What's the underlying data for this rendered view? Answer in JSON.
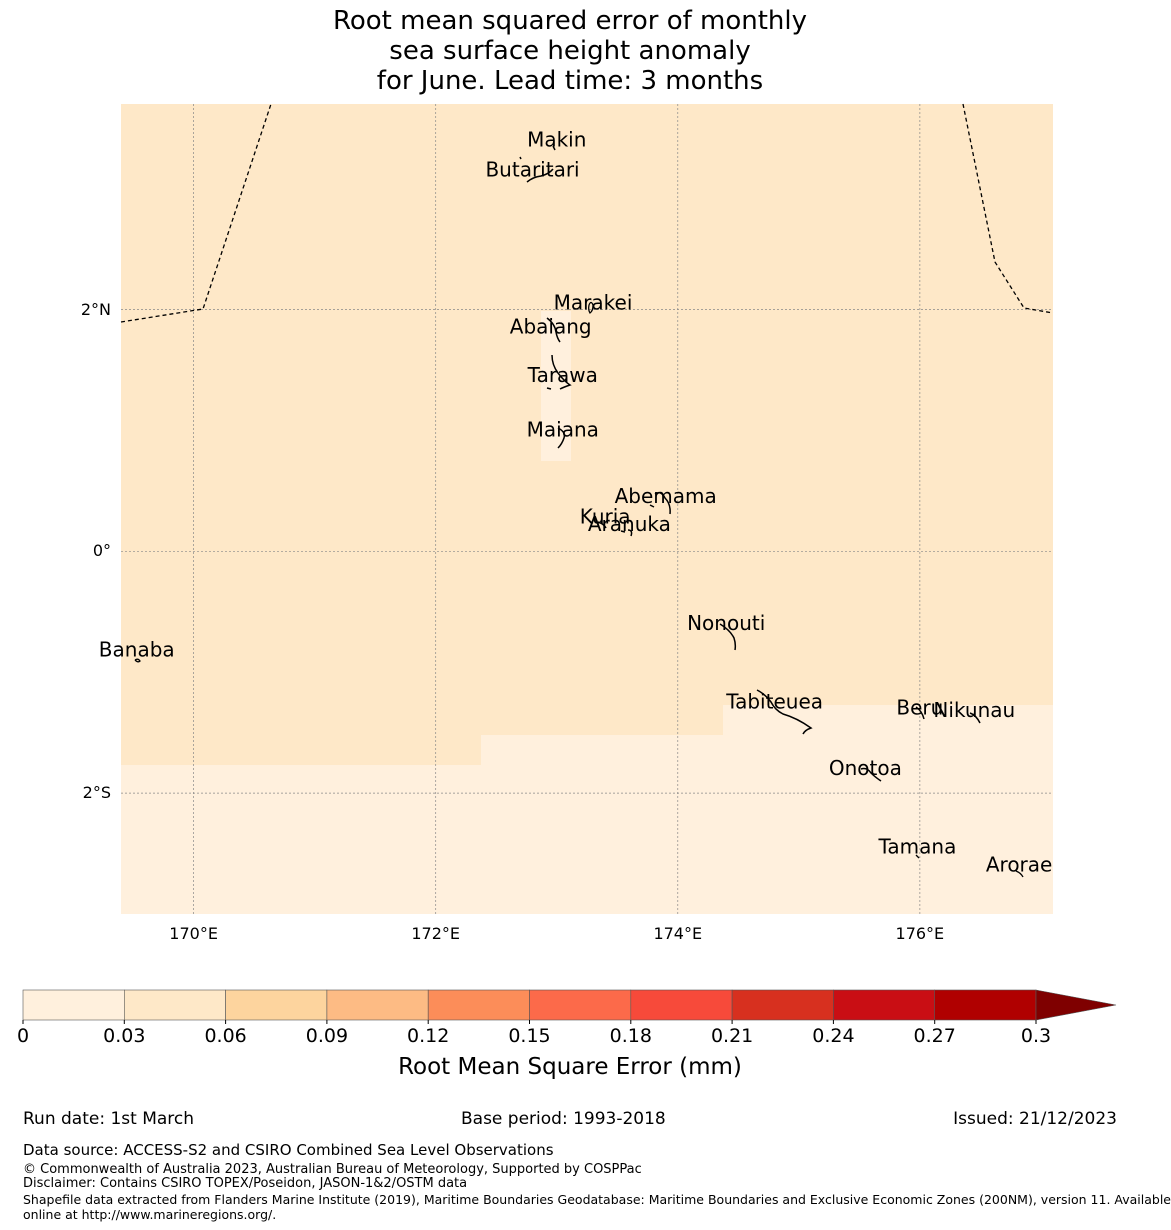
{
  "title": {
    "line1": "Root mean squared error of monthly",
    "line2": "sea surface height anomaly",
    "line3": "for June. Lead time: 3 months"
  },
  "map": {
    "lon_range": [
      169.4,
      177.1
    ],
    "lat_range": [
      -3.0,
      3.7
    ],
    "lon_ticks": [
      {
        "value": 170,
        "label": "170°E"
      },
      {
        "value": 172,
        "label": "172°E"
      },
      {
        "value": 174,
        "label": "174°E"
      },
      {
        "value": 176,
        "label": "176°E"
      }
    ],
    "lat_ticks": [
      {
        "value": 2,
        "label": "2°N"
      },
      {
        "value": 0,
        "label": "0°"
      },
      {
        "value": -2,
        "label": "2°S"
      }
    ],
    "rmse_regions": [
      {
        "bin": "0.03-0.06",
        "color": "#fee8c8"
      },
      {
        "bin": "0-0.03",
        "color": "#fff0dd"
      }
    ],
    "islands": [
      {
        "name": "Makin",
        "lon": 173.0,
        "lat": 3.35
      },
      {
        "name": "Butaritari",
        "lon": 172.8,
        "lat": 3.1
      },
      {
        "name": "Marakei",
        "lon": 173.3,
        "lat": 2.0
      },
      {
        "name": "Abaiang",
        "lon": 172.95,
        "lat": 1.8
      },
      {
        "name": "Tarawa",
        "lon": 173.05,
        "lat": 1.4
      },
      {
        "name": "Maiana",
        "lon": 173.05,
        "lat": 0.95
      },
      {
        "name": "Abemama",
        "lon": 173.9,
        "lat": 0.4
      },
      {
        "name": "Kuria",
        "lon": 173.4,
        "lat": 0.23
      },
      {
        "name": "Aranuka",
        "lon": 173.6,
        "lat": 0.17
      },
      {
        "name": "Nonouti",
        "lon": 174.4,
        "lat": -0.65
      },
      {
        "name": "Banaba",
        "lon": 169.53,
        "lat": -0.87
      },
      {
        "name": "Tabiteuea",
        "lon": 174.8,
        "lat": -1.3
      },
      {
        "name": "Beru",
        "lon": 176.0,
        "lat": -1.35
      },
      {
        "name": "Nikunau",
        "lon": 176.45,
        "lat": -1.37
      },
      {
        "name": "Onotoa",
        "lon": 175.55,
        "lat": -1.85
      },
      {
        "name": "Tamana",
        "lon": 175.98,
        "lat": -2.5
      },
      {
        "name": "Arorae",
        "lon": 176.82,
        "lat": -2.65
      }
    ]
  },
  "colorbar": {
    "title": "Root Mean Square Error (mm)",
    "ticks": [
      "0",
      "0.03",
      "0.06",
      "0.09",
      "0.12",
      "0.15",
      "0.18",
      "0.21",
      "0.24",
      "0.27",
      "0.3"
    ],
    "colors": [
      "#fff0dd",
      "#fee8c8",
      "#fdd49e",
      "#fdbb84",
      "#fc8d59",
      "#fc6a4a",
      "#f74a3a",
      "#d7301f",
      "#c90e14",
      "#b00000"
    ],
    "extend_color": "#7f0000"
  },
  "footer": {
    "run_date": "Run date: 1st March",
    "base_period": "Base period: 1993-2018",
    "issued": "Issued: 21/12/2023",
    "data_source": "Data source: ACCESS-S2 and CSIRO Combined Sea Level Observations",
    "copyright": "© Commonwealth of Australia 2023, Australian Bureau of Meteorology, Supported by COSPPac",
    "disclaimer": "Disclaimer: Contains CSIRO TOPEX/Poseidon, JASON-1&2/OSTM data",
    "shapefile_line1": "Shapefile data extracted from Flanders Marine Institute (2019), Maritime Boundaries Geodatabase: Maritime Boundaries and Exclusive Economic Zones (200NM), version 11. Available",
    "shapefile_line2": "online at http://www.marineregions.org/."
  }
}
